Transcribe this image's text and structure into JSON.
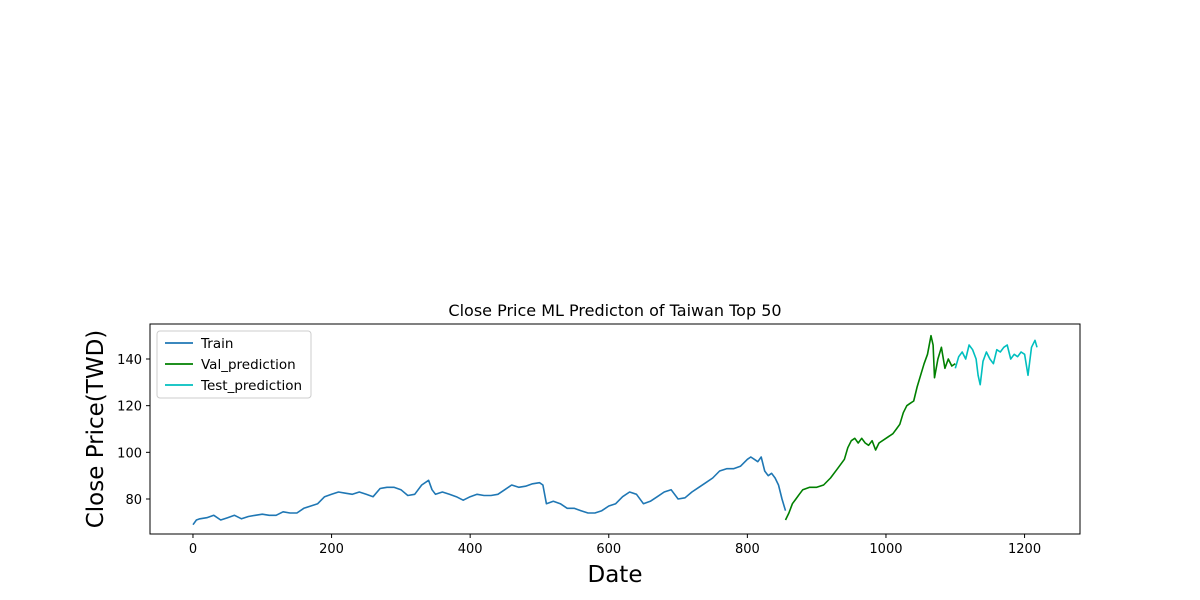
{
  "chart_data": {
    "type": "line",
    "title": "Close Price ML Predicton of Taiwan Top 50",
    "xlabel": "Date",
    "ylabel": "Close Price(TWD)",
    "xlim": [
      -62,
      1280
    ],
    "ylim": [
      65,
      155
    ],
    "xticks": [
      0,
      200,
      400,
      600,
      800,
      1000,
      1200
    ],
    "yticks": [
      80,
      100,
      120,
      140
    ],
    "grid": false,
    "legend": "upper-left",
    "series": [
      {
        "name": "Train",
        "color": "#1f77b4",
        "x": [
          0,
          5,
          10,
          20,
          30,
          40,
          50,
          60,
          70,
          80,
          90,
          100,
          110,
          120,
          130,
          140,
          150,
          160,
          170,
          180,
          190,
          200,
          210,
          220,
          230,
          240,
          250,
          260,
          270,
          280,
          290,
          300,
          310,
          320,
          330,
          340,
          345,
          350,
          360,
          370,
          380,
          390,
          400,
          410,
          420,
          430,
          440,
          450,
          460,
          470,
          480,
          490,
          500,
          505,
          510,
          515,
          520,
          530,
          540,
          550,
          560,
          570,
          580,
          590,
          600,
          610,
          620,
          630,
          640,
          650,
          660,
          670,
          680,
          690,
          700,
          710,
          720,
          730,
          740,
          750,
          760,
          770,
          780,
          790,
          800,
          805,
          810,
          815,
          820,
          825,
          830,
          835,
          840,
          845,
          850,
          855
        ],
        "values": [
          69,
          71,
          71.5,
          72,
          73,
          71,
          72,
          73,
          71.5,
          72.5,
          73,
          73.5,
          73,
          73,
          74.5,
          74,
          74,
          76,
          77,
          78,
          81,
          82,
          83,
          82.5,
          82,
          83,
          82,
          81,
          84.5,
          85,
          85,
          84,
          81.5,
          82,
          86,
          88,
          84,
          82,
          83,
          82,
          81,
          79.5,
          81,
          82,
          81.5,
          81.5,
          82,
          84,
          86,
          85,
          85.5,
          86.5,
          87,
          86,
          78,
          78.5,
          79,
          78,
          76,
          76,
          75,
          74,
          74,
          75,
          77,
          78,
          81,
          83,
          82,
          78,
          79,
          81,
          83,
          84,
          80,
          80.5,
          83,
          85,
          87,
          89,
          92,
          93,
          93,
          94,
          97,
          98,
          97,
          96,
          98,
          92,
          90,
          91,
          89,
          86,
          80,
          75
        ]
      },
      {
        "name": "Val_prediction",
        "color": "#008000",
        "x": [
          855,
          860,
          865,
          870,
          875,
          880,
          890,
          900,
          910,
          920,
          930,
          940,
          945,
          950,
          955,
          960,
          965,
          970,
          975,
          980,
          985,
          990,
          1000,
          1010,
          1015,
          1020,
          1025,
          1030,
          1035,
          1040,
          1045,
          1050,
          1055,
          1060,
          1065,
          1068,
          1070,
          1075,
          1080,
          1085,
          1090,
          1095,
          1100
        ],
        "values": [
          71,
          74,
          78,
          80,
          82,
          84,
          85,
          85,
          86,
          89,
          93,
          97,
          102,
          105,
          106,
          104,
          106,
          104,
          103,
          105,
          101,
          104,
          106,
          108,
          110,
          112,
          117,
          120,
          121,
          122,
          128,
          133,
          138,
          142,
          150,
          146,
          132,
          140,
          145,
          136,
          140,
          137,
          138
        ]
      },
      {
        "name": "Test_prediction",
        "color": "#00bfbf",
        "x": [
          1100,
          1105,
          1110,
          1115,
          1120,
          1125,
          1130,
          1133,
          1136,
          1140,
          1145,
          1150,
          1155,
          1160,
          1165,
          1170,
          1175,
          1180,
          1185,
          1190,
          1195,
          1200,
          1205,
          1210,
          1215,
          1218
        ],
        "values": [
          136,
          141,
          143,
          140,
          146,
          144,
          140,
          133,
          129,
          139,
          143,
          140,
          138,
          144,
          143,
          145,
          146,
          140,
          142,
          141,
          143,
          142,
          133,
          145,
          148,
          145
        ]
      }
    ]
  }
}
